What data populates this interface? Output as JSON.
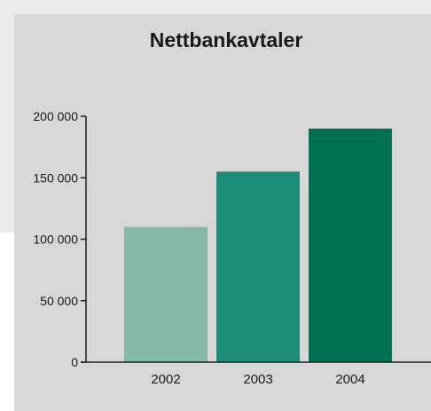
{
  "colors": {
    "panel": "#d7d7d7",
    "band": "#ebebeb",
    "axis": "#1a1a1a",
    "text": "#1a1a1a"
  },
  "chart_data": {
    "type": "bar",
    "title": "Nettbankavtaler",
    "xlabel": "",
    "ylabel": "",
    "categories": [
      "2002",
      "2003",
      "2004"
    ],
    "values": [
      110000,
      155000,
      190000
    ],
    "bar_colors": [
      "#84b9a8",
      "#1c8e77",
      "#007052"
    ],
    "ylim": [
      0,
      200000
    ],
    "yticks": [
      {
        "value": 0,
        "label": "0"
      },
      {
        "value": 50000,
        "label": "50 000"
      },
      {
        "value": 100000,
        "label": "100 000"
      },
      {
        "value": 150000,
        "label": "150 000"
      },
      {
        "value": 200000,
        "label": "200 000"
      }
    ],
    "grid": false,
    "legend": "none"
  }
}
